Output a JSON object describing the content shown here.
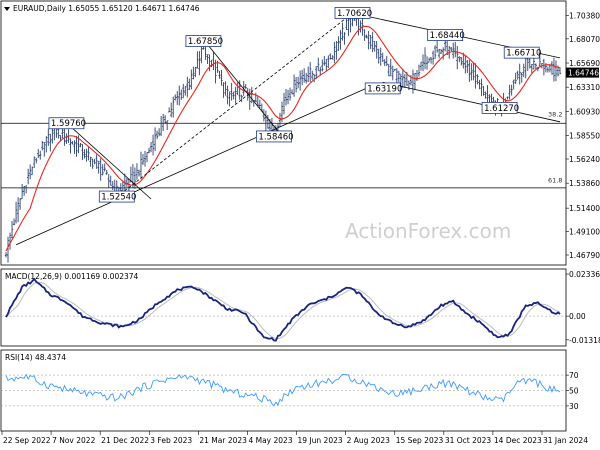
{
  "chart_data": [
    {
      "type": "candlestick",
      "title": "EURAUD,Daily  1.65055 1.65120 1.64671 1.64746",
      "price_tag": 1.64746,
      "y_ticks": [
        1.4679,
        1.491,
        1.514,
        1.5386,
        1.5624,
        1.5855,
        1.6093,
        1.6331,
        1.6569,
        1.6807,
        1.7038
      ],
      "ylim": [
        1.46,
        1.715
      ],
      "x_ticks": [
        "22 Sep 2022",
        "7 Nov 2022",
        "21 Dec 2022",
        "3 Feb 2023",
        "21 Mar 2023",
        "4 May 2023",
        "19 Jun 2023",
        "2 Aug 2023",
        "15 Sep 2023",
        "31 Oct 2023",
        "14 Dec 2023",
        "31 Jan 2024"
      ],
      "anchors": [
        {
          "d": 0,
          "v": 1.472
        },
        {
          "d": 8,
          "v": 1.53
        },
        {
          "d": 14,
          "v": 1.56
        },
        {
          "d": 24,
          "v": 1.592
        },
        {
          "d": 35,
          "v": 1.575
        },
        {
          "d": 46,
          "v": 1.555
        },
        {
          "d": 55,
          "v": 1.53
        },
        {
          "d": 64,
          "v": 1.545
        },
        {
          "d": 76,
          "v": 1.59
        },
        {
          "d": 84,
          "v": 1.62
        },
        {
          "d": 92,
          "v": 1.64
        },
        {
          "d": 98,
          "v": 1.672
        },
        {
          "d": 103,
          "v": 1.652
        },
        {
          "d": 110,
          "v": 1.625
        },
        {
          "d": 118,
          "v": 1.63
        },
        {
          "d": 126,
          "v": 1.612
        },
        {
          "d": 133,
          "v": 1.587
        },
        {
          "d": 138,
          "v": 1.62
        },
        {
          "d": 145,
          "v": 1.64
        },
        {
          "d": 155,
          "v": 1.65
        },
        {
          "d": 162,
          "v": 1.665
        },
        {
          "d": 168,
          "v": 1.69
        },
        {
          "d": 172,
          "v": 1.703
        },
        {
          "d": 180,
          "v": 1.68
        },
        {
          "d": 190,
          "v": 1.65
        },
        {
          "d": 200,
          "v": 1.635
        },
        {
          "d": 210,
          "v": 1.665
        },
        {
          "d": 218,
          "v": 1.672
        },
        {
          "d": 226,
          "v": 1.658
        },
        {
          "d": 234,
          "v": 1.64
        },
        {
          "d": 240,
          "v": 1.618
        },
        {
          "d": 246,
          "v": 1.614
        },
        {
          "d": 252,
          "v": 1.64
        },
        {
          "d": 258,
          "v": 1.657
        },
        {
          "d": 266,
          "v": 1.655
        },
        {
          "d": 275,
          "v": 1.647
        }
      ],
      "ema_lag": 12,
      "annotations": [
        {
          "text": "1.59760",
          "d": 30,
          "v": 1.5976
        },
        {
          "text": "1.52540",
          "d": 55,
          "v": 1.5254
        },
        {
          "text": "1.67850",
          "d": 98,
          "v": 1.6785
        },
        {
          "text": "1.58460",
          "d": 133,
          "v": 1.5846
        },
        {
          "text": "1.70620",
          "d": 172,
          "v": 1.7062
        },
        {
          "text": "1.63190",
          "d": 187,
          "v": 1.6319
        },
        {
          "text": "1.68440",
          "d": 218,
          "v": 1.6844
        },
        {
          "text": "1.61270",
          "d": 245,
          "v": 1.6127
        },
        {
          "text": "1.66710",
          "d": 256,
          "v": 1.6671
        }
      ],
      "horizontal_levels": [
        1.5976,
        1.534
      ],
      "fib_labels": [
        {
          "text": "38.2",
          "v": 1.604
        },
        {
          "text": "61.8",
          "v": 1.5395
        }
      ],
      "trendlines": [
        {
          "from": {
            "d": 5,
            "v": 1.478
          },
          "to": {
            "d": 180,
            "v": 1.633
          }
        },
        {
          "from": {
            "d": 55,
            "v": 1.525
          },
          "to": {
            "d": 172,
            "v": 1.706
          }
        },
        {
          "from": {
            "d": 172,
            "v": 1.706
          },
          "to": {
            "d": 275,
            "v": 1.662
          }
        },
        {
          "from": {
            "d": 187,
            "v": 1.638
          },
          "to": {
            "d": 275,
            "v": 1.599
          }
        },
        {
          "from": {
            "d": 30,
            "v": 1.598
          },
          "to": {
            "d": 72,
            "v": 1.523
          }
        },
        {
          "from": {
            "d": 98,
            "v": 1.68
          },
          "to": {
            "d": 135,
            "v": 1.59
          }
        }
      ],
      "watermark": "ActionForex.com"
    },
    {
      "type": "line",
      "title": "MACD(12,26,9) 0.001169 0.002374",
      "y_ticks": [
        0.023366,
        0.0,
        -0.013186
      ],
      "ylim": [
        -0.0155,
        0.0245
      ],
      "macd_anchors": [
        {
          "d": 0,
          "v": 0.0
        },
        {
          "d": 8,
          "v": 0.016
        },
        {
          "d": 14,
          "v": 0.02
        },
        {
          "d": 22,
          "v": 0.012
        },
        {
          "d": 30,
          "v": 0.008
        },
        {
          "d": 38,
          "v": 0.0
        },
        {
          "d": 48,
          "v": -0.004
        },
        {
          "d": 58,
          "v": -0.006
        },
        {
          "d": 66,
          "v": -0.002
        },
        {
          "d": 76,
          "v": 0.008
        },
        {
          "d": 86,
          "v": 0.015
        },
        {
          "d": 94,
          "v": 0.016
        },
        {
          "d": 102,
          "v": 0.01
        },
        {
          "d": 110,
          "v": 0.004
        },
        {
          "d": 118,
          "v": 0.002
        },
        {
          "d": 128,
          "v": -0.012
        },
        {
          "d": 134,
          "v": -0.013
        },
        {
          "d": 142,
          "v": -0.002
        },
        {
          "d": 150,
          "v": 0.006
        },
        {
          "d": 160,
          "v": 0.01
        },
        {
          "d": 170,
          "v": 0.016
        },
        {
          "d": 176,
          "v": 0.012
        },
        {
          "d": 184,
          "v": 0.002
        },
        {
          "d": 192,
          "v": -0.004
        },
        {
          "d": 200,
          "v": -0.006
        },
        {
          "d": 208,
          "v": -0.002
        },
        {
          "d": 216,
          "v": 0.006
        },
        {
          "d": 222,
          "v": 0.008
        },
        {
          "d": 228,
          "v": 0.002
        },
        {
          "d": 236,
          "v": -0.004
        },
        {
          "d": 244,
          "v": -0.012
        },
        {
          "d": 250,
          "v": -0.01
        },
        {
          "d": 258,
          "v": 0.006
        },
        {
          "d": 264,
          "v": 0.007
        },
        {
          "d": 270,
          "v": 0.003
        },
        {
          "d": 275,
          "v": 0.001
        }
      ],
      "signal_lag": 6
    },
    {
      "type": "line",
      "title": "RSI(14) 48.4374",
      "y_ticks": [
        70,
        50,
        30
      ],
      "ylim": [
        0,
        100
      ],
      "rsi_anchors": [
        {
          "d": 0,
          "v": 65
        },
        {
          "d": 10,
          "v": 68
        },
        {
          "d": 20,
          "v": 58
        },
        {
          "d": 32,
          "v": 50
        },
        {
          "d": 44,
          "v": 44
        },
        {
          "d": 56,
          "v": 40
        },
        {
          "d": 66,
          "v": 52
        },
        {
          "d": 78,
          "v": 64
        },
        {
          "d": 90,
          "v": 68
        },
        {
          "d": 100,
          "v": 60
        },
        {
          "d": 112,
          "v": 48
        },
        {
          "d": 124,
          "v": 42
        },
        {
          "d": 134,
          "v": 34
        },
        {
          "d": 144,
          "v": 54
        },
        {
          "d": 156,
          "v": 60
        },
        {
          "d": 170,
          "v": 68
        },
        {
          "d": 180,
          "v": 58
        },
        {
          "d": 192,
          "v": 46
        },
        {
          "d": 204,
          "v": 50
        },
        {
          "d": 216,
          "v": 60
        },
        {
          "d": 226,
          "v": 54
        },
        {
          "d": 236,
          "v": 42
        },
        {
          "d": 246,
          "v": 36
        },
        {
          "d": 254,
          "v": 60
        },
        {
          "d": 262,
          "v": 62
        },
        {
          "d": 270,
          "v": 52
        },
        {
          "d": 275,
          "v": 48
        }
      ]
    }
  ]
}
